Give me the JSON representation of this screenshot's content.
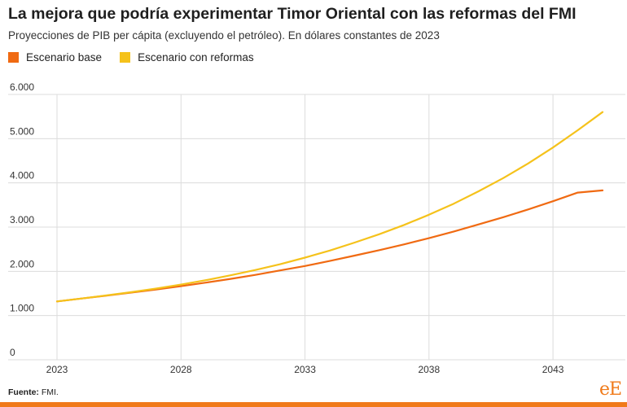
{
  "header": {
    "title": "La mejora que podría experimentar Timor Oriental con las reformas del FMI",
    "subtitle": "Proyecciones de PIB per cápita (excluyendo el petróleo). En dólares constantes de 2023"
  },
  "legend": {
    "items": [
      {
        "label": "Escenario base",
        "color": "#f06a12"
      },
      {
        "label": "Escenario con reformas",
        "color": "#f5c21b"
      }
    ]
  },
  "footer": {
    "source_label": "Fuente:",
    "source_text": "FMI.",
    "logo": "eE"
  },
  "chart_data": {
    "type": "line",
    "title": "La mejora que podría experimentar Timor Oriental con las reformas del FMI",
    "subtitle": "Proyecciones de PIB per cápita (excluyendo el petróleo). En dólares constantes de 2023",
    "xlabel": "",
    "ylabel": "",
    "xlim": [
      2023,
      2045
    ],
    "ylim": [
      0,
      6000
    ],
    "x_ticks": [
      2023,
      2028,
      2033,
      2038,
      2043
    ],
    "y_ticks": [
      0,
      1000,
      2000,
      3000,
      4000,
      5000,
      6000
    ],
    "y_tick_labels": [
      "0",
      "1.000",
      "2.000",
      "3.000",
      "4.000",
      "5.000",
      "6.000"
    ],
    "grid": true,
    "legend_position": "top-left",
    "x": [
      2023,
      2024,
      2025,
      2026,
      2027,
      2028,
      2029,
      2030,
      2031,
      2032,
      2033,
      2034,
      2035,
      2036,
      2037,
      2038,
      2039,
      2040,
      2041,
      2042,
      2043,
      2044,
      2045
    ],
    "series": [
      {
        "name": "Escenario base",
        "color": "#f06a12",
        "values": [
          1320,
          1385,
          1450,
          1520,
          1590,
          1665,
          1745,
          1830,
          1920,
          2020,
          2120,
          2235,
          2355,
          2480,
          2610,
          2750,
          2900,
          3060,
          3225,
          3400,
          3585,
          3780,
          3830
        ]
      },
      {
        "name": "Escenario con reformas",
        "color": "#f5c21b",
        "values": [
          1320,
          1385,
          1455,
          1530,
          1610,
          1700,
          1800,
          1910,
          2030,
          2160,
          2310,
          2470,
          2650,
          2840,
          3050,
          3280,
          3530,
          3810,
          4110,
          4440,
          4800,
          5190,
          5600
        ]
      }
    ]
  }
}
